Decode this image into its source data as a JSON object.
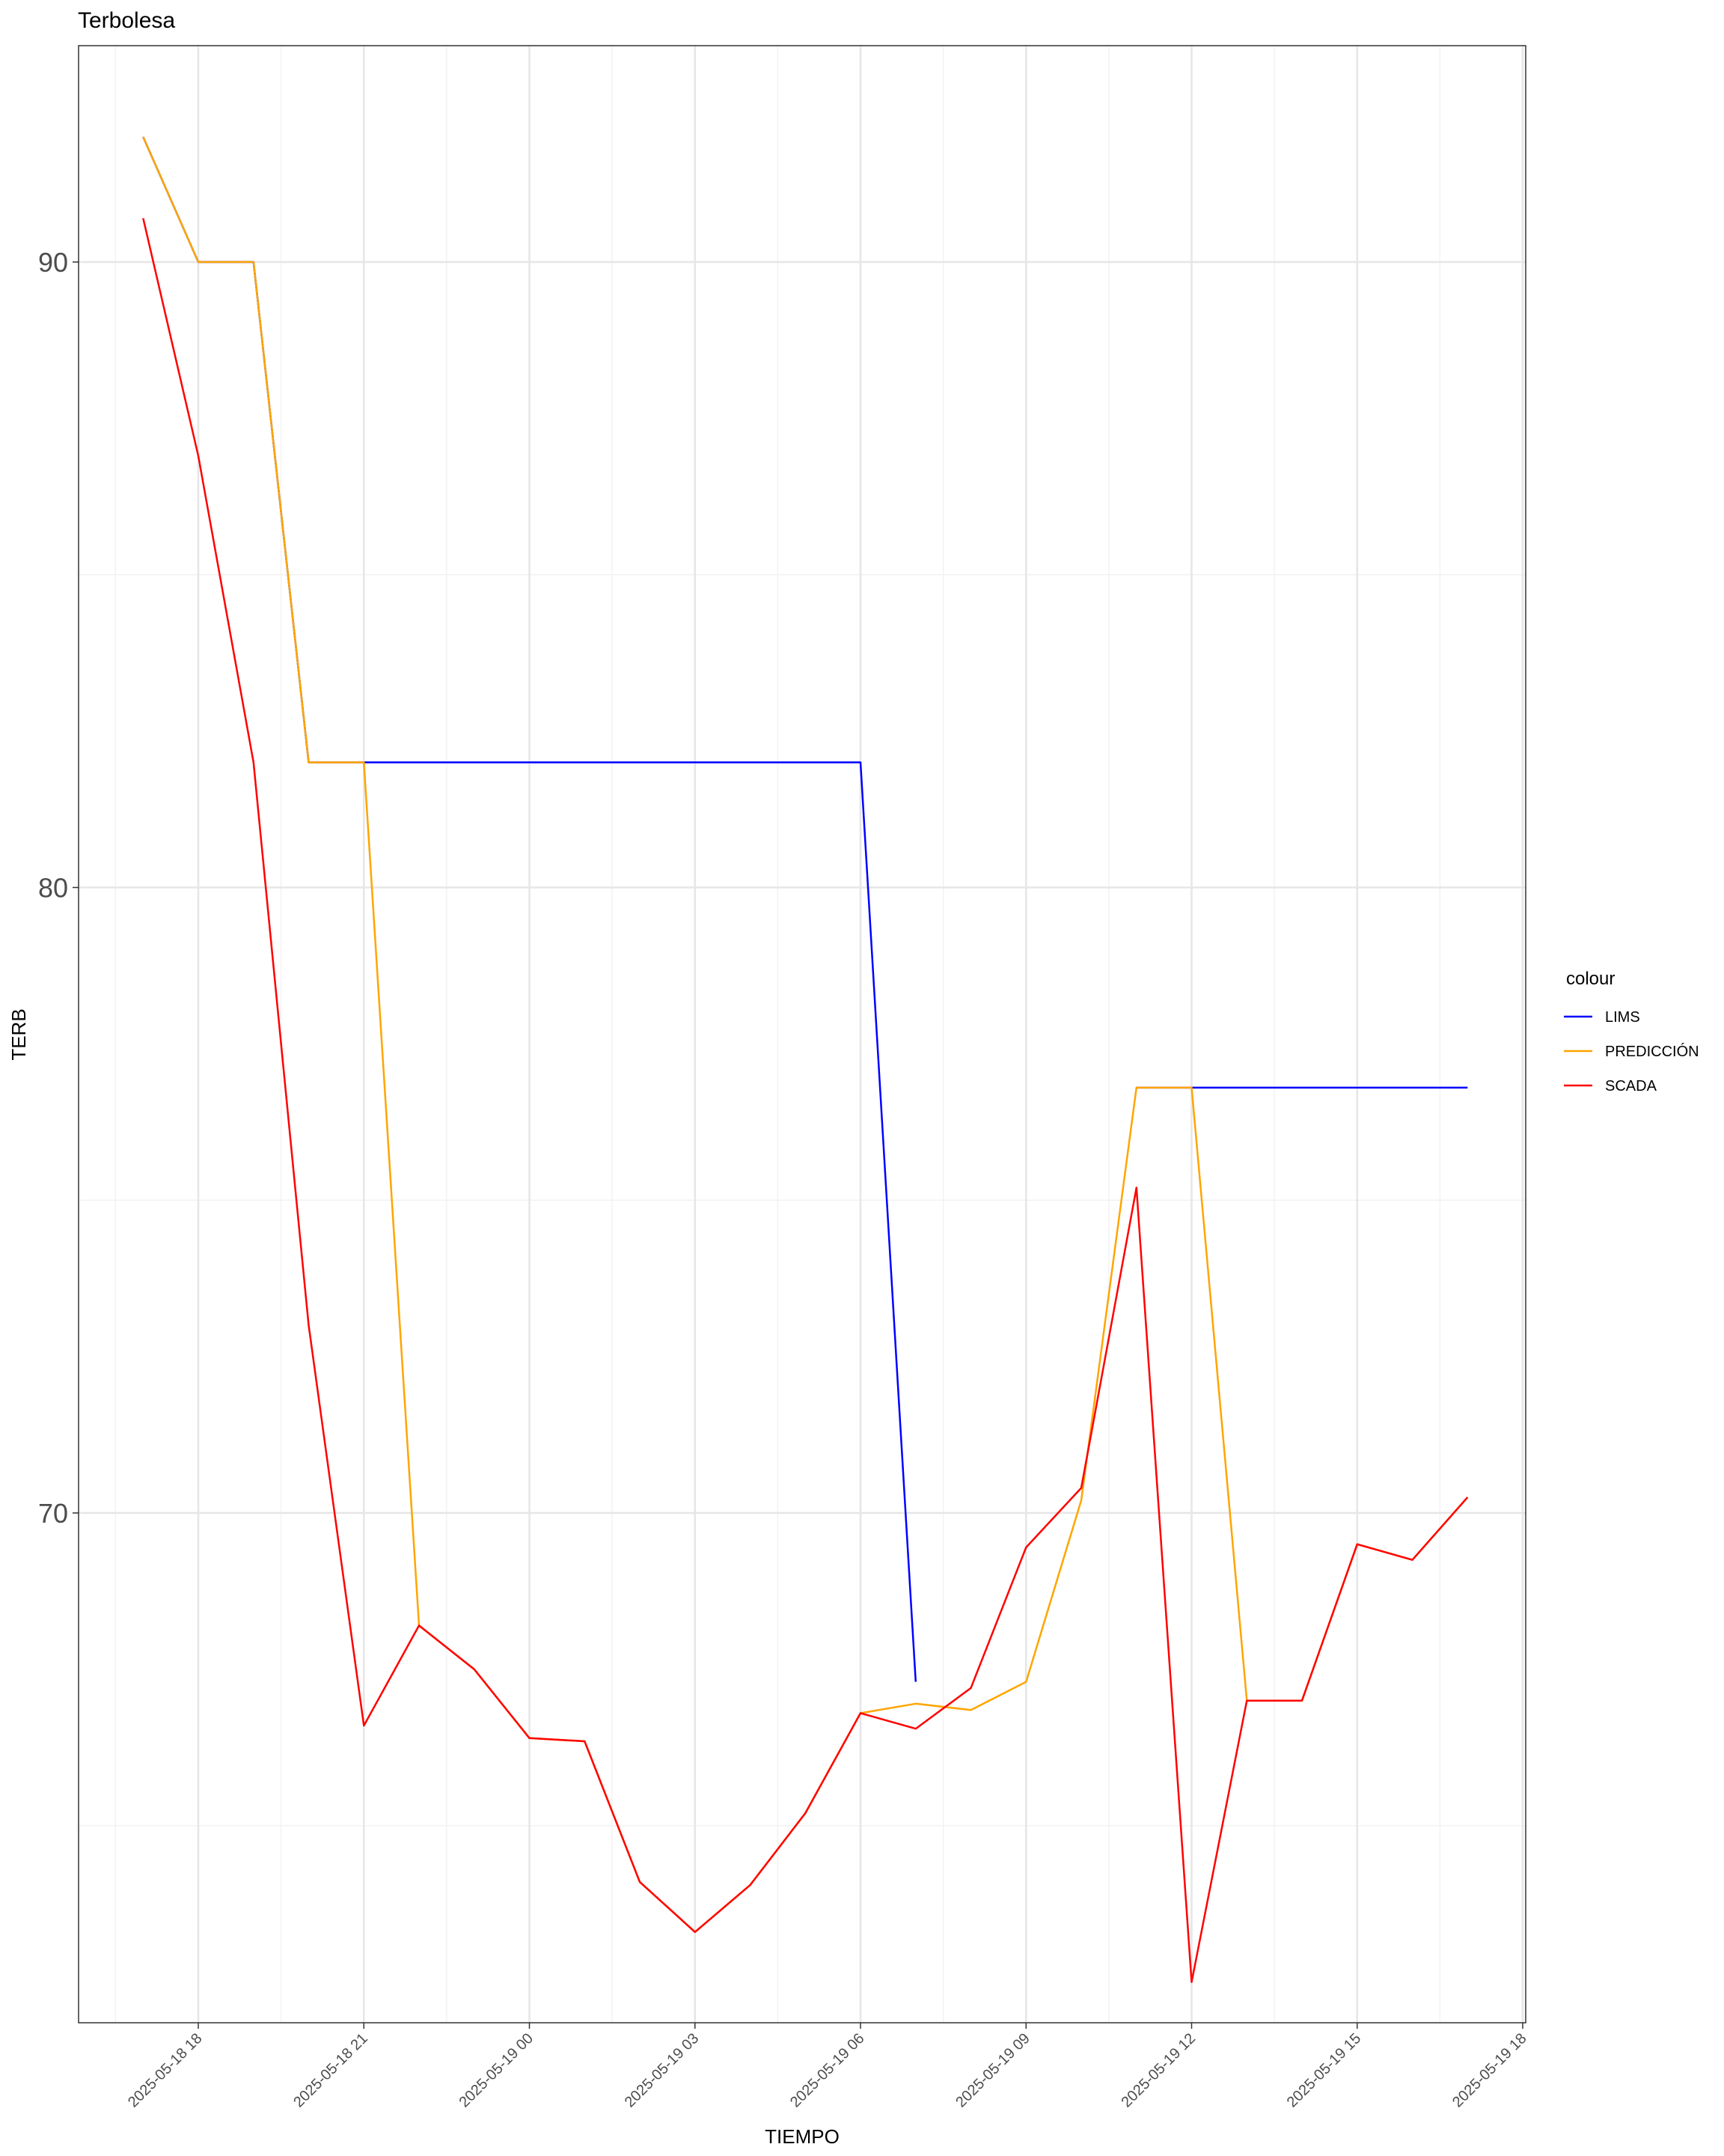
{
  "chart_data": {
    "type": "line",
    "title": "Terbolesa",
    "xlabel": "TIEMPO",
    "ylabel": "TERB",
    "x_ticks": [
      "2025-05-18 18",
      "2025-05-18 21",
      "2025-05-19 00",
      "2025-05-19 03",
      "2025-05-19 06",
      "2025-05-19 09",
      "2025-05-19 12",
      "2025-05-19 15",
      "2025-05-19 18"
    ],
    "y_ticks": [
      70,
      80,
      90
    ],
    "legend": {
      "title": "colour",
      "position": "right"
    },
    "grid": true,
    "x": [
      "2025-05-18 17:00",
      "2025-05-18 18:00",
      "2025-05-18 19:00",
      "2025-05-18 20:00",
      "2025-05-18 21:00",
      "2025-05-18 22:00",
      "2025-05-18 23:00",
      "2025-05-19 00:00",
      "2025-05-19 01:00",
      "2025-05-19 02:00",
      "2025-05-19 03:00",
      "2025-05-19 04:00",
      "2025-05-19 05:00",
      "2025-05-19 06:00",
      "2025-05-19 07:00",
      "2025-05-19 08:00",
      "2025-05-19 09:00",
      "2025-05-19 10:00",
      "2025-05-19 11:00",
      "2025-05-19 12:00",
      "2025-05-19 13:00",
      "2025-05-19 14:00",
      "2025-05-19 15:00",
      "2025-05-19 16:00",
      "2025-05-19 17:00"
    ],
    "series": [
      {
        "name": "LIMS",
        "color": "#0000FF",
        "values": [
          92,
          90,
          90,
          82,
          82,
          82,
          82,
          82,
          82,
          82,
          82,
          82,
          82,
          82,
          67.3,
          null,
          null,
          null,
          76.8,
          76.8,
          76.8,
          76.8,
          76.8,
          76.8,
          76.8
        ]
      },
      {
        "name": "PREDICCIÓN",
        "color": "#FFA500",
        "values": [
          92,
          90,
          90,
          82,
          82,
          68.2,
          67.5,
          66.4,
          66.35,
          64.1,
          63.3,
          64.05,
          65.2,
          66.8,
          66.95,
          66.85,
          67.3,
          70.2,
          76.8,
          76.8,
          67.0,
          67.0,
          69.5,
          69.25,
          70.25
        ]
      },
      {
        "name": "SCADA",
        "color": "#FF0000",
        "values": [
          90.7,
          86.9,
          82,
          73,
          66.6,
          68.2,
          67.5,
          66.4,
          66.35,
          64.1,
          63.3,
          64.05,
          65.2,
          66.8,
          66.55,
          67.2,
          69.45,
          70.4,
          75.2,
          62.5,
          67.0,
          67.0,
          69.5,
          69.25,
          70.25
        ]
      }
    ]
  }
}
